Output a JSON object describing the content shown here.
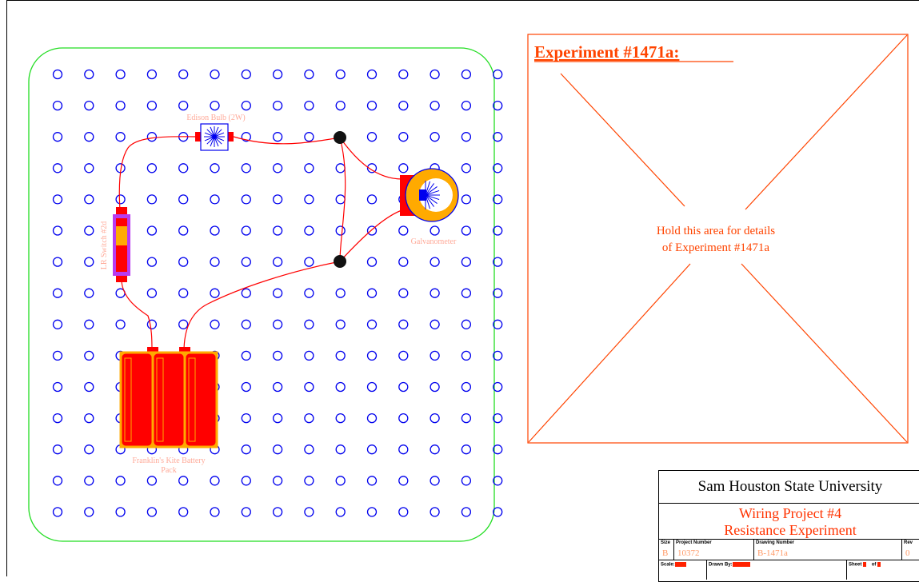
{
  "breadboard": {
    "components": {
      "bulb_label": "Edison Bulb (2W)",
      "switch_label": "LR Switch #2d",
      "galvanometer_label": "Galvanometer",
      "battery_label_line1": "Franklin's Kite Battery",
      "battery_label_line2": "Pack"
    }
  },
  "experiment_panel": {
    "title": "Experiment #1471a:",
    "placeholder_line1": "Hold this area for details",
    "placeholder_line2": "of Experiment #1471a"
  },
  "title_block": {
    "university": "Sam Houston State University",
    "project_line1": "Wiring Project #4",
    "project_line2": "Resistance Experiment",
    "size_label": "Size",
    "size_value": "B",
    "project_number_label": "Project Number",
    "project_number_value": "10372",
    "drawing_number_label": "Drawing Number",
    "drawing_number_value": "B-1471a",
    "rev_label": "Rev",
    "rev_value": "0",
    "scale_label": "Scale:",
    "drawn_by_label": "Drawn By:",
    "sheet_label": "Sheet",
    "of_label": "of"
  },
  "colors": {
    "board_border": "#22dd22",
    "hole": "#0000ee",
    "wire": "#ff0000",
    "panel": "#ff4400",
    "component_red": "#ff0000",
    "component_orange": "#ffaa00",
    "label_pink": "#ffaa99"
  }
}
